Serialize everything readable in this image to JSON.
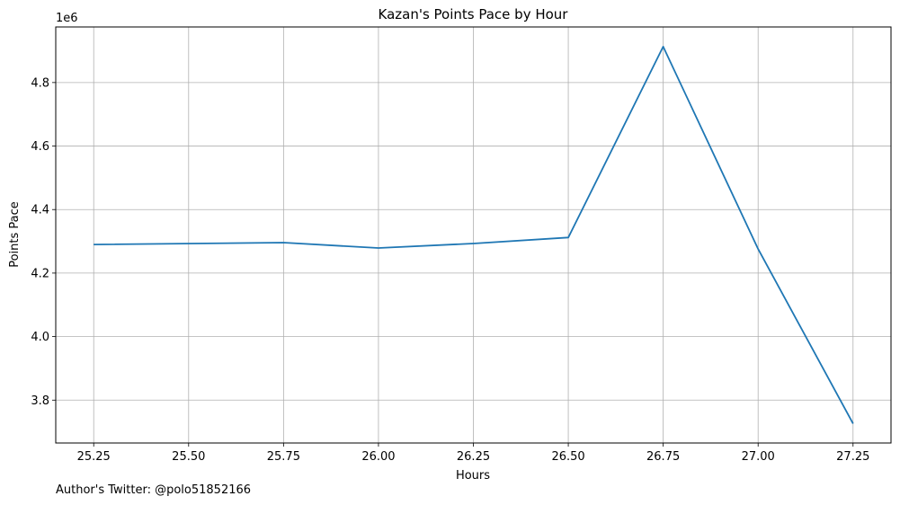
{
  "chart_data": {
    "type": "line",
    "title": "Kazan's Points Pace by Hour",
    "xlabel": "Hours",
    "ylabel": "Points Pace",
    "y_offset_label": "1e6",
    "xlim": [
      25.15,
      27.35
    ],
    "ylim": [
      3.665,
      4.975
    ],
    "x_ticks": [
      25.25,
      25.5,
      25.75,
      26.0,
      26.25,
      26.5,
      26.75,
      27.0,
      27.25
    ],
    "x_tick_labels": [
      "25.25",
      "25.50",
      "25.75",
      "26.00",
      "26.25",
      "26.50",
      "26.75",
      "27.00",
      "27.25"
    ],
    "y_ticks": [
      3.8,
      4.0,
      4.2,
      4.4,
      4.6,
      4.8
    ],
    "y_tick_labels": [
      "3.8",
      "4.0",
      "4.2",
      "4.4",
      "4.6",
      "4.8"
    ],
    "grid": true,
    "series": [
      {
        "color": "#1f77b4",
        "x": [
          25.25,
          25.75,
          26.0,
          26.25,
          26.5,
          26.75,
          27.0,
          27.25
        ],
        "y": [
          4.29,
          4.296,
          4.279,
          4.293,
          4.312,
          4.913,
          4.276,
          3.726
        ]
      }
    ]
  },
  "footer": {
    "text": "Author's Twitter: @polo51852166"
  }
}
